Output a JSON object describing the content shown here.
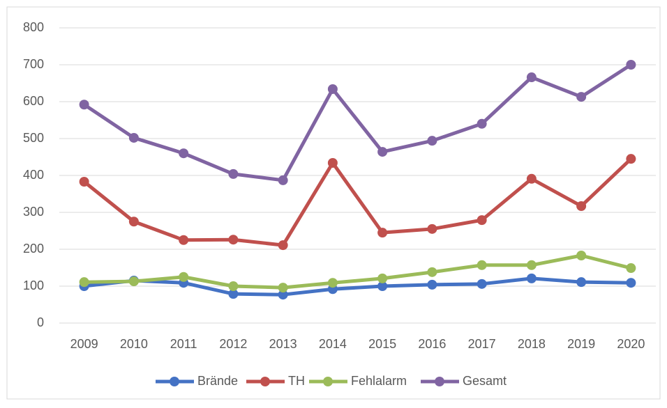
{
  "chart_data": {
    "type": "line",
    "categories": [
      "2009",
      "2010",
      "2011",
      "2012",
      "2013",
      "2014",
      "2015",
      "2016",
      "2017",
      "2018",
      "2019",
      "2020"
    ],
    "series": [
      {
        "name": "Brände",
        "color": "#4472c4",
        "values": [
          100,
          115,
          109,
          79,
          77,
          92,
          100,
          104,
          106,
          121,
          111,
          109
        ]
      },
      {
        "name": "TH",
        "color": "#c0504d",
        "values": [
          383,
          275,
          225,
          226,
          211,
          434,
          245,
          255,
          279,
          391,
          317,
          445
        ]
      },
      {
        "name": "Fehlalarm",
        "color": "#9bbb59",
        "values": [
          111,
          113,
          125,
          100,
          96,
          109,
          121,
          138,
          157,
          157,
          183,
          149
        ]
      },
      {
        "name": "Gesamt",
        "color": "#8064a2",
        "values": [
          592,
          502,
          460,
          404,
          387,
          634,
          464,
          494,
          540,
          666,
          613,
          700
        ]
      }
    ],
    "ylim": [
      0,
      800
    ],
    "yticks": [
      0,
      100,
      200,
      300,
      400,
      500,
      600,
      700,
      800
    ],
    "grid": true,
    "legend": "bottom"
  }
}
